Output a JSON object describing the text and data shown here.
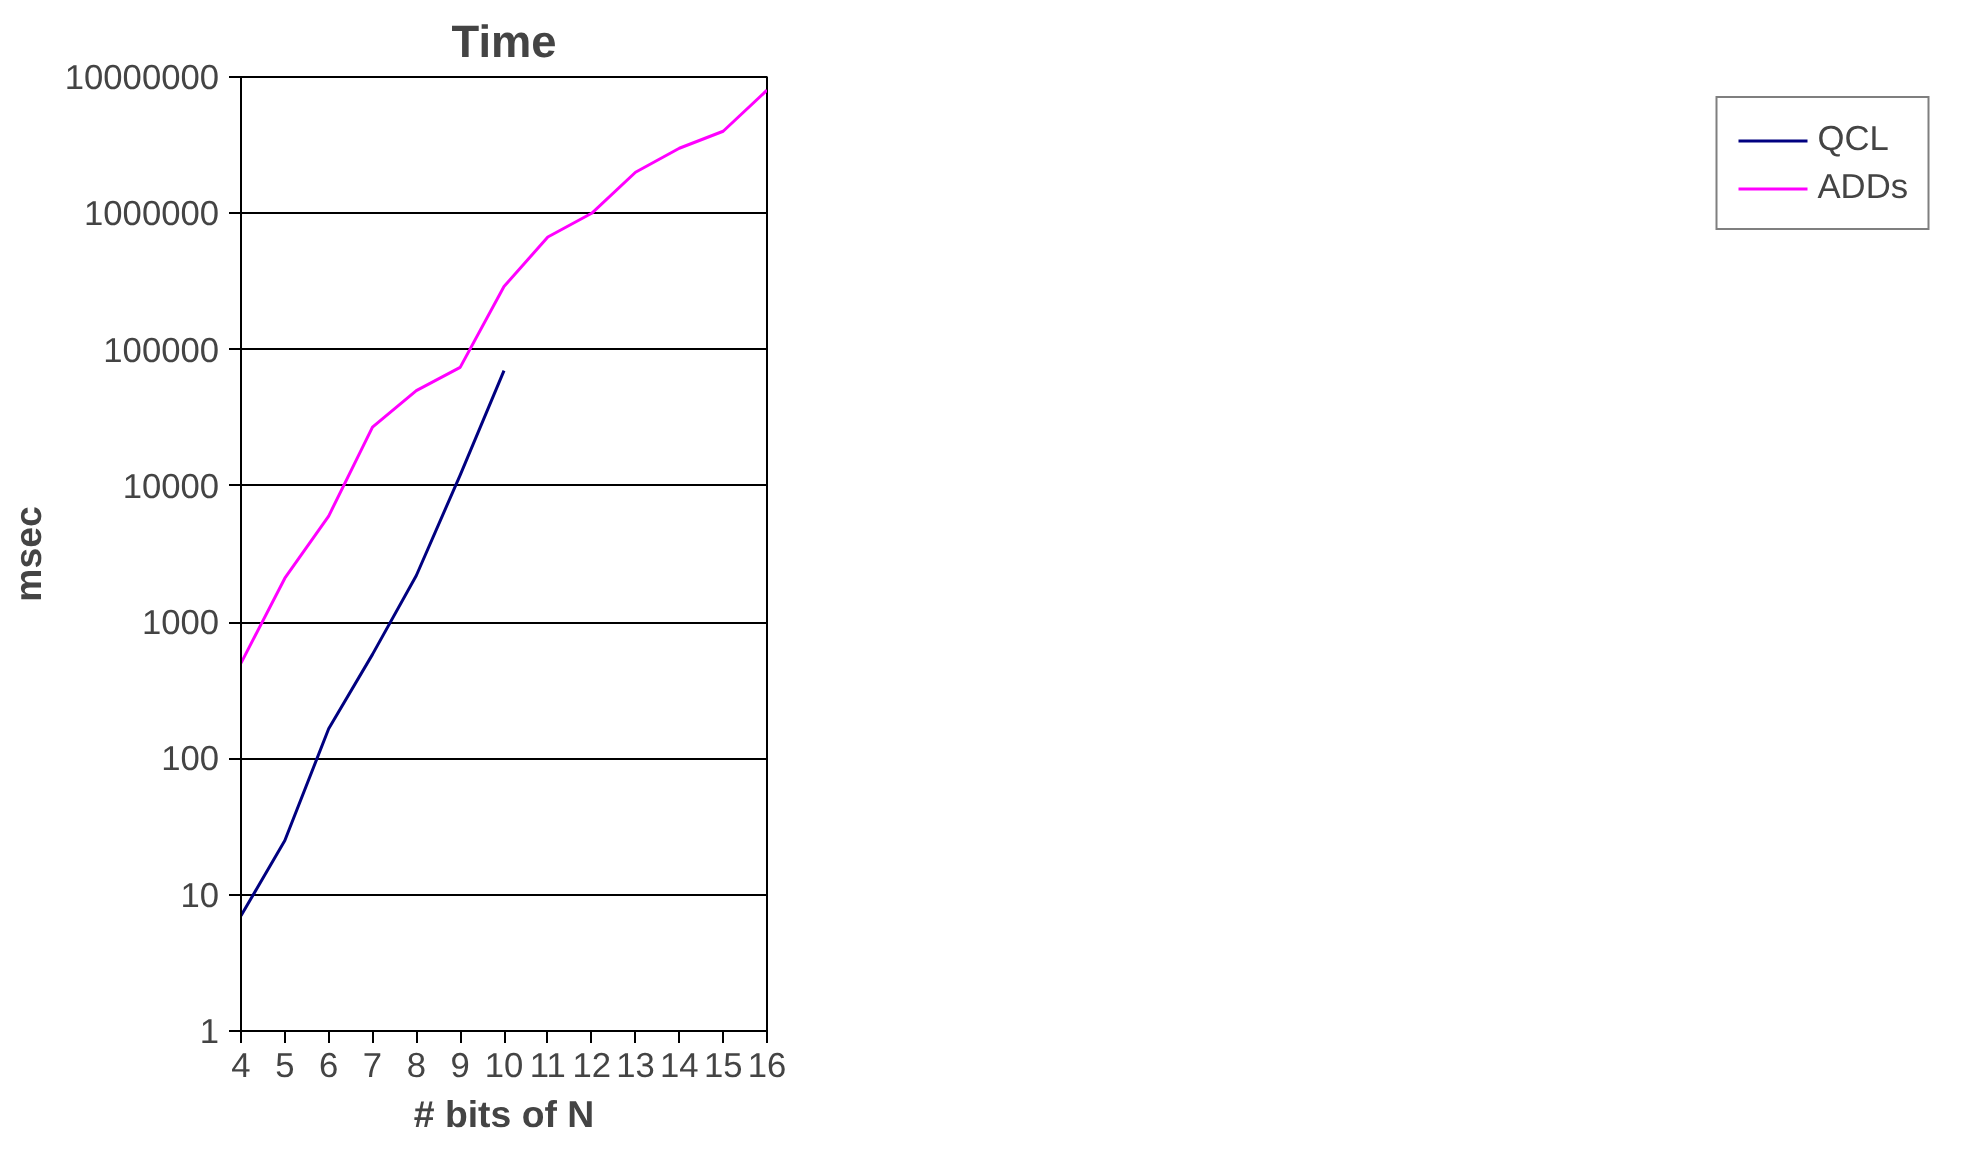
{
  "chart_data": {
    "type": "line",
    "title": "Time",
    "xlabel": "# bits of N",
    "ylabel": "msec",
    "x": [
      4,
      5,
      6,
      7,
      8,
      9,
      10,
      11,
      12,
      13,
      14,
      15,
      16
    ],
    "series": [
      {
        "name": "QCL",
        "color": "#000080",
        "values": [
          7,
          25,
          165,
          580,
          2200,
          12000,
          70000,
          null,
          null,
          null,
          null,
          null,
          null
        ]
      },
      {
        "name": "ADDs",
        "color": "#ff00ff",
        "values": [
          500,
          2100,
          6000,
          27000,
          50000,
          74000,
          290000,
          670000,
          1000000,
          2000000,
          3000000,
          4000000,
          8000000
        ]
      }
    ],
    "log": "y",
    "xlim": [
      4,
      16
    ],
    "xticks": [
      4,
      5,
      6,
      7,
      8,
      9,
      10,
      11,
      12,
      13,
      14,
      15,
      16
    ],
    "ylim": [
      1,
      10000000
    ],
    "yticks": [
      1,
      10,
      100,
      1000,
      10000,
      100000,
      1000000,
      10000000
    ],
    "grid": "y",
    "legend": "right",
    "marker": "none",
    "line_style": "solid"
  }
}
